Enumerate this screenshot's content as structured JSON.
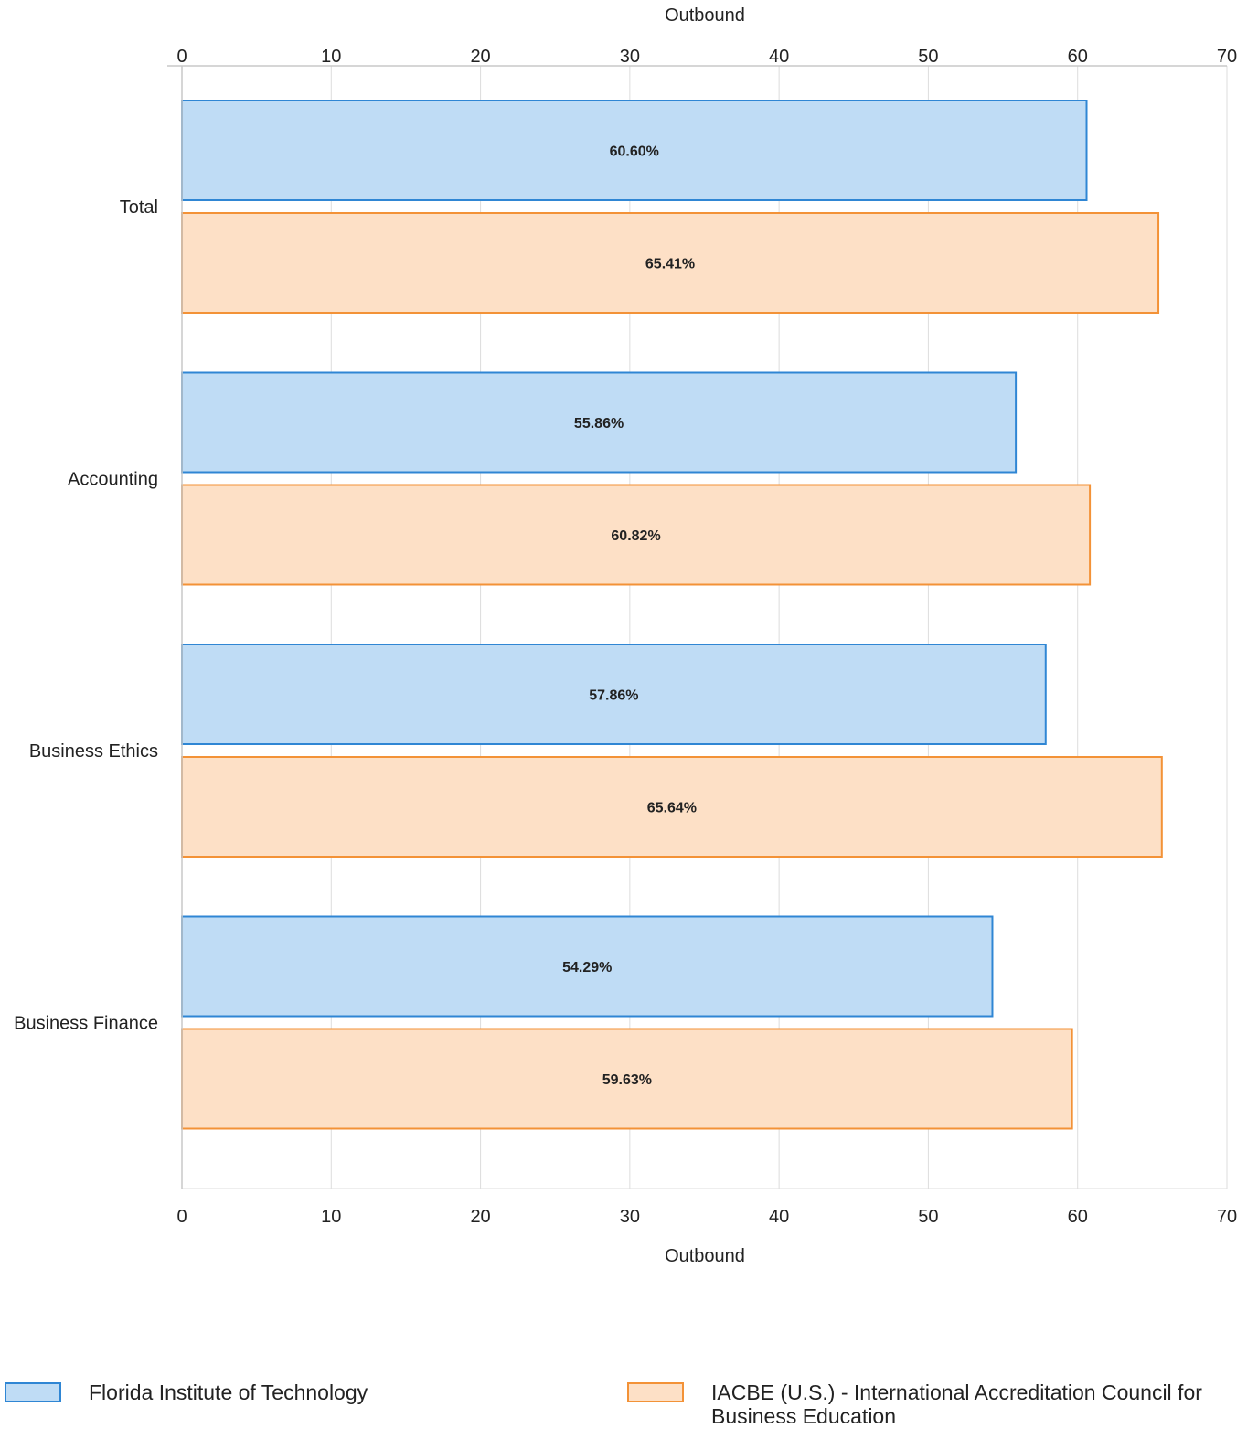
{
  "chart_data": {
    "type": "bar",
    "orientation": "horizontal",
    "categories": [
      "Total",
      "Accounting",
      "Business Ethics",
      "Business Finance"
    ],
    "series": [
      {
        "name": "Florida Institute of Technology",
        "values": [
          60.6,
          55.86,
          57.86,
          54.29
        ],
        "labels": [
          "60.60%",
          "55.86%",
          "57.86%",
          "54.29%"
        ],
        "fill": "#bfdcf5",
        "stroke": "#2f86d4"
      },
      {
        "name": "IACBE (U.S.) - International Accreditation Council for Business Education",
        "values": [
          65.41,
          60.82,
          65.64,
          59.63
        ],
        "labels": [
          "65.41%",
          "60.82%",
          "65.64%",
          "59.63%"
        ],
        "fill": "#fde0c6",
        "stroke": "#f39237"
      }
    ],
    "xlabel_top": "Outbound",
    "xlabel_bottom": "Outbound",
    "xlim": [
      0,
      70
    ],
    "xticks": [
      "0",
      "10",
      "20",
      "30",
      "40",
      "50",
      "60",
      "70"
    ],
    "grid": true,
    "legend_position": "bottom"
  }
}
